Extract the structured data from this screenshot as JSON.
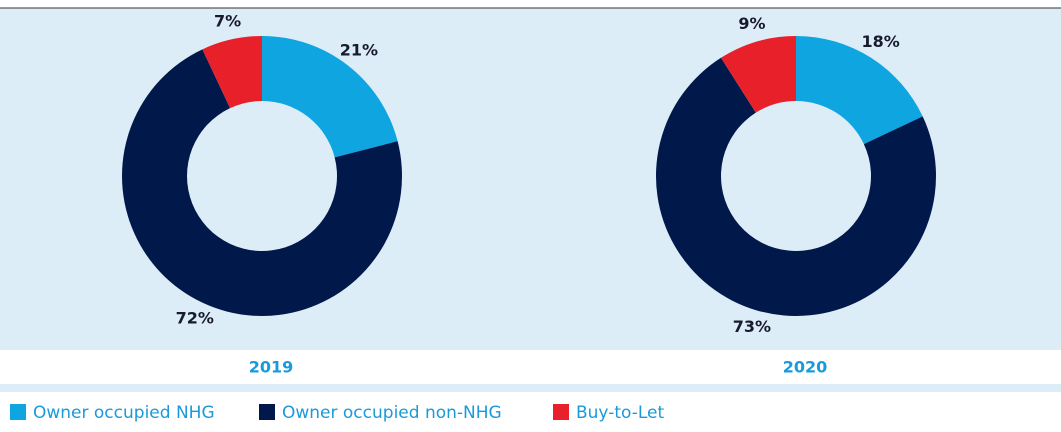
{
  "chart_data": [
    {
      "type": "pie",
      "label": "2019",
      "categories": [
        "Owner occupied NHG",
        "Owner occupied non-NHG",
        "Buy-to-Let"
      ],
      "values": [
        21,
        72,
        7
      ],
      "value_labels": [
        "21%",
        "72%",
        "7%"
      ],
      "colors": [
        "#0ea5e0",
        "#00194a",
        "#e8202a"
      ],
      "donut": true
    },
    {
      "type": "pie",
      "label": "2020",
      "categories": [
        "Owner occupied NHG",
        "Owner occupied non-NHG",
        "Buy-to-Let"
      ],
      "values": [
        18,
        73,
        9
      ],
      "value_labels": [
        "18%",
        "73%",
        "9%"
      ],
      "colors": [
        "#0ea5e0",
        "#00194a",
        "#e8202a"
      ],
      "donut": true
    }
  ]
}
